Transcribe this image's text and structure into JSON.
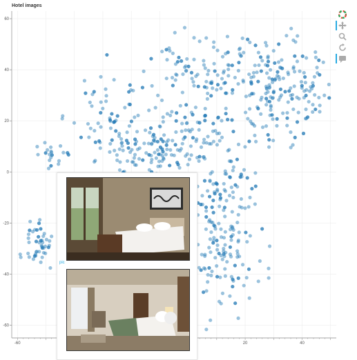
{
  "title": "Hotel images",
  "tooltip": {
    "label": "pic",
    "images": [
      {
        "icon": "hotel-room-photo-icon"
      },
      {
        "icon": "hotel-room-photo-icon"
      }
    ]
  },
  "toolbar": [
    {
      "name": "bokeh-logo-icon",
      "active": false
    },
    {
      "name": "pan-tool-icon",
      "active": true
    },
    {
      "name": "wheel-zoom-tool-icon",
      "active": false
    },
    {
      "name": "reset-tool-icon",
      "active": false
    },
    {
      "name": "hover-tool-icon",
      "active": true
    }
  ],
  "chart_data": {
    "type": "scatter",
    "title": "Hotel images",
    "xlim": [
      -62,
      52
    ],
    "ylim": [
      -65,
      63
    ],
    "x_ticks": [
      -60,
      20,
      40
    ],
    "y_ticks": [
      -60,
      -40,
      -20,
      0,
      20,
      40,
      60
    ],
    "grid": true,
    "point_color": "#1f77b4",
    "clusters": [
      {
        "cx": 35,
        "cy": 32,
        "sx": 8,
        "sy": 8,
        "n": 140
      },
      {
        "cx": 10,
        "cy": 40,
        "sx": 12,
        "sy": 8,
        "n": 120
      },
      {
        "cx": 0,
        "cy": 15,
        "sx": 14,
        "sy": 10,
        "n": 150
      },
      {
        "cx": -28,
        "cy": 22,
        "sx": 8,
        "sy": 9,
        "n": 50
      },
      {
        "cx": -14,
        "cy": 6,
        "sx": 9,
        "sy": 6,
        "n": 60
      },
      {
        "cx": -48,
        "cy": 8,
        "sx": 3,
        "sy": 3,
        "n": 20
      },
      {
        "cx": -52,
        "cy": -27,
        "sx": 3,
        "sy": 4,
        "n": 45
      },
      {
        "cx": 10,
        "cy": -30,
        "sx": 7,
        "sy": 12,
        "n": 140
      },
      {
        "cx": 12,
        "cy": -5,
        "sx": 6,
        "sy": 7,
        "n": 50
      }
    ]
  }
}
